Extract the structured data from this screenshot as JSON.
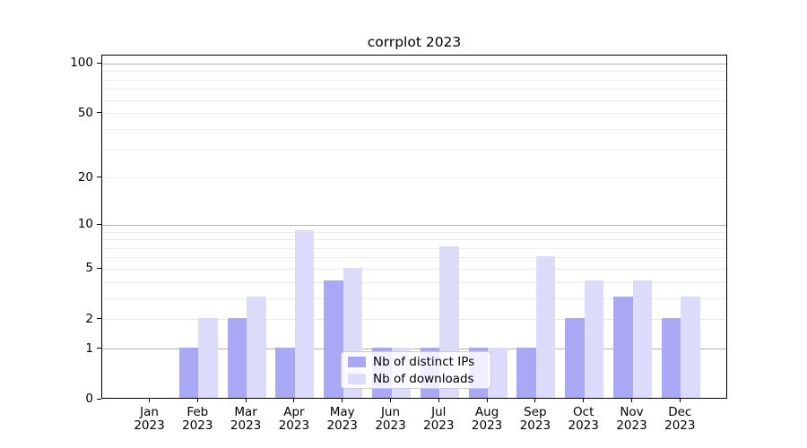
{
  "figure": {
    "background": "#ffffff"
  },
  "chart_data": {
    "type": "bar",
    "title": "corrplot 2023",
    "xlabel": "",
    "ylabel": "",
    "categories": [
      "Jan",
      "Feb",
      "Mar",
      "Apr",
      "May",
      "Jun",
      "Jul",
      "Aug",
      "Sep",
      "Oct",
      "Nov",
      "Dec"
    ],
    "x_year_label": "2023",
    "series": [
      {
        "name": "Nb of distinct IPs",
        "color": "#a8a8f5",
        "values": [
          0,
          1,
          2,
          1,
          4,
          1,
          1,
          1,
          1,
          2,
          3,
          2
        ]
      },
      {
        "name": "Nb of downloads",
        "color": "#dcdcfa",
        "values": [
          0,
          2,
          3,
          9,
          5,
          1,
          7,
          1,
          6,
          4,
          4,
          3
        ]
      }
    ],
    "y_axis": {
      "scale": "log1p",
      "tick_labels": [
        "100",
        "50",
        "20",
        "10",
        "5",
        "2",
        "1",
        "0"
      ],
      "tick_values": [
        100,
        50,
        20,
        10,
        5,
        2,
        1,
        0
      ],
      "major_gridlines": [
        100,
        10,
        1
      ],
      "minor_gridlines": [
        90,
        80,
        70,
        60,
        50,
        40,
        30,
        20,
        9,
        8,
        7,
        6,
        5,
        4,
        3,
        2
      ],
      "ylim": [
        0,
        110
      ]
    },
    "grid": {
      "major_color": "#b4b4b4",
      "minor_color": "#ececec"
    },
    "legend": {
      "position": "lower center"
    }
  }
}
